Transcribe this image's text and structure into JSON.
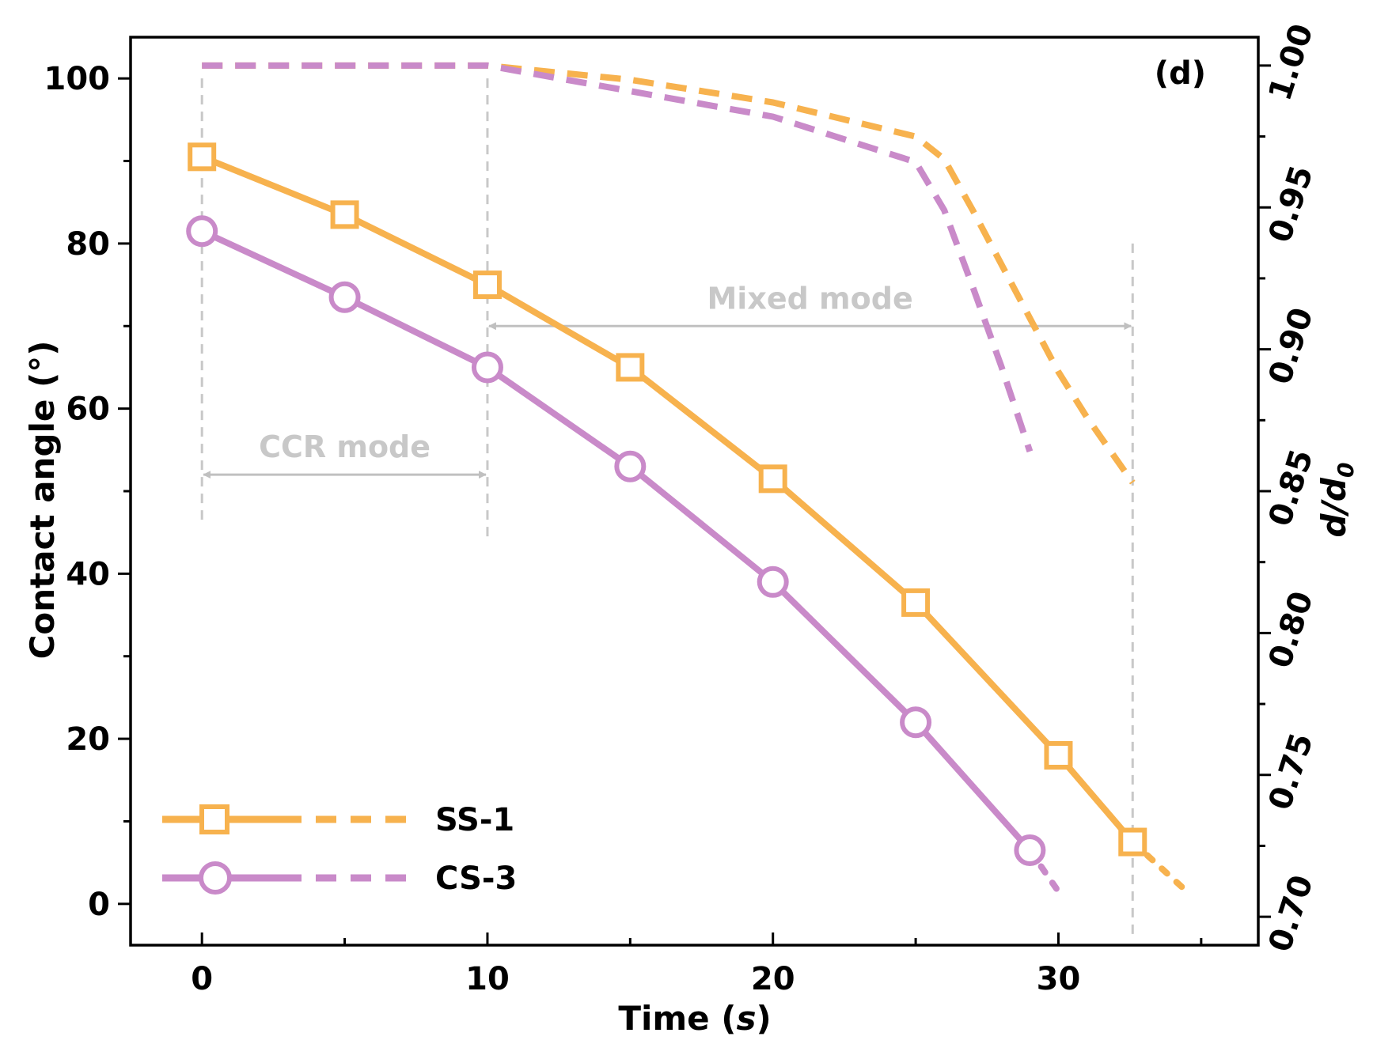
{
  "chart_data": {
    "type": "line",
    "panel_label": "(d)",
    "xlabel_main": "Time (",
    "xlabel_italic": "s",
    "xlabel_end": ")",
    "ylabel": "Contact angle (°)",
    "y2label_base": "d/d",
    "y2label_sub": "0",
    "xlim": [
      -2.5,
      37
    ],
    "ylim": [
      -5,
      105
    ],
    "y2lim": [
      0.69,
      1.01
    ],
    "x_ticks": [
      0,
      10,
      20,
      30
    ],
    "x_minor_ticks": [
      5,
      15,
      25,
      35
    ],
    "y_ticks": [
      0,
      20,
      40,
      60,
      80,
      100
    ],
    "y_minor_ticks": [
      10,
      30,
      50,
      70,
      90
    ],
    "y2_ticks": [
      "0.70",
      "0.75",
      "0.80",
      "0.85",
      "0.90",
      "0.95",
      "1.00"
    ],
    "y2_minor_ticks": [
      0.725,
      0.775,
      0.825,
      0.875,
      0.925,
      0.975
    ],
    "colors": {
      "SS-1": "#f7b24e",
      "CS-3": "#c98ac9",
      "guide": "#c8c8c8"
    },
    "series": [
      {
        "name": "SS-1",
        "marker": "square",
        "contact_angle": {
          "x": [
            0,
            5,
            10,
            15,
            20,
            25,
            30,
            32.6
          ],
          "y": [
            90.5,
            83.5,
            75,
            65,
            51.5,
            36.5,
            18,
            7.5
          ]
        },
        "contact_angle_tail": {
          "x": [
            32.6,
            34.5
          ],
          "y": [
            7.5,
            1.5
          ]
        },
        "d_d0": {
          "x": [
            0,
            5,
            10,
            15,
            20,
            25,
            26,
            27,
            28,
            29,
            30,
            31,
            32.6
          ],
          "y": [
            1.0,
            1.0,
            1.0,
            0.995,
            0.987,
            0.975,
            0.967,
            0.949,
            0.93,
            0.911,
            0.892,
            0.876,
            0.853
          ]
        }
      },
      {
        "name": "CS-3",
        "marker": "circle",
        "contact_angle": {
          "x": [
            0,
            5,
            10,
            15,
            20,
            25,
            29
          ],
          "y": [
            81.5,
            73.5,
            65,
            53,
            39,
            22,
            6.5
          ]
        },
        "contact_angle_tail": {
          "x": [
            29,
            30
          ],
          "y": [
            6.5,
            1.5
          ]
        },
        "d_d0": {
          "x": [
            0,
            5,
            10,
            15,
            20,
            25,
            26,
            27,
            28,
            29
          ],
          "y": [
            1.0,
            1.0,
            1.0,
            0.991,
            0.982,
            0.966,
            0.949,
            0.922,
            0.894,
            0.864
          ]
        }
      }
    ],
    "annotations": [
      {
        "text": "CCR mode",
        "x_start": 0,
        "x_end": 10,
        "y": 52
      },
      {
        "text": "Mixed mode",
        "x_start": 10,
        "x_end": 32.6,
        "y": 70
      }
    ],
    "guide_lines_x": [
      0,
      10,
      32.6
    ],
    "legend": {
      "placement": "bottom-left",
      "entries": [
        "SS-1",
        "CS-3"
      ]
    }
  }
}
